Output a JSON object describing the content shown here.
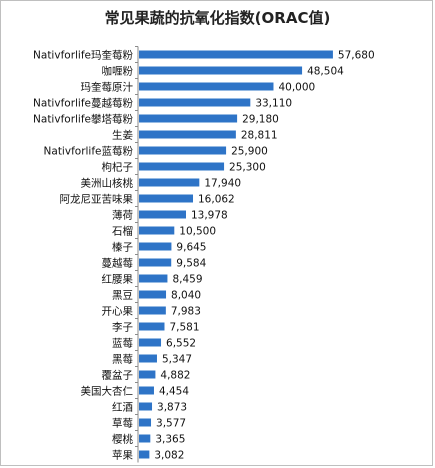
{
  "chart_data": {
    "type": "bar",
    "orientation": "horizontal",
    "title": "常见果蔬的抗氧化指数(ORAC值)",
    "categories": [
      "Nativforlife玛奎莓粉",
      "咖喱粉",
      "玛奎莓原汁",
      "Nativforlife蔓越莓粉",
      "Nativforlife攀塔莓粉",
      "生姜",
      "Nativforlife蓝莓粉",
      "枸杞子",
      "美洲山核桃",
      "阿龙尼亚苦味果",
      "薄荷",
      "石榴",
      "榛子",
      "蔓越莓",
      "红腰果",
      "黑豆",
      "开心果",
      "李子",
      "蓝莓",
      "黑莓",
      "覆盆子",
      "美国大杏仁",
      "红酒",
      "草莓",
      "樱桃",
      "苹果"
    ],
    "values": [
      57680,
      48504,
      40000,
      33110,
      29180,
      28811,
      25900,
      25300,
      17940,
      16062,
      13978,
      10500,
      9645,
      9584,
      8459,
      8040,
      7983,
      7581,
      6552,
      5347,
      4882,
      4454,
      3873,
      3577,
      3365,
      3082
    ],
    "value_labels": [
      "57,680",
      "48,504",
      "40,000",
      "33,110",
      "29,180",
      "28,811",
      "25,900",
      "25,300",
      "17,940",
      "16,062",
      "13,978",
      "10,500",
      "9,645",
      "9,584",
      "8,459",
      "8,040",
      "7,983",
      "7,581",
      "6,552",
      "5,347",
      "4,882",
      "4,454",
      "3,873",
      "3,577",
      "3,365",
      "3,082"
    ],
    "bar_color": "#2e74c7",
    "legend": "none"
  }
}
